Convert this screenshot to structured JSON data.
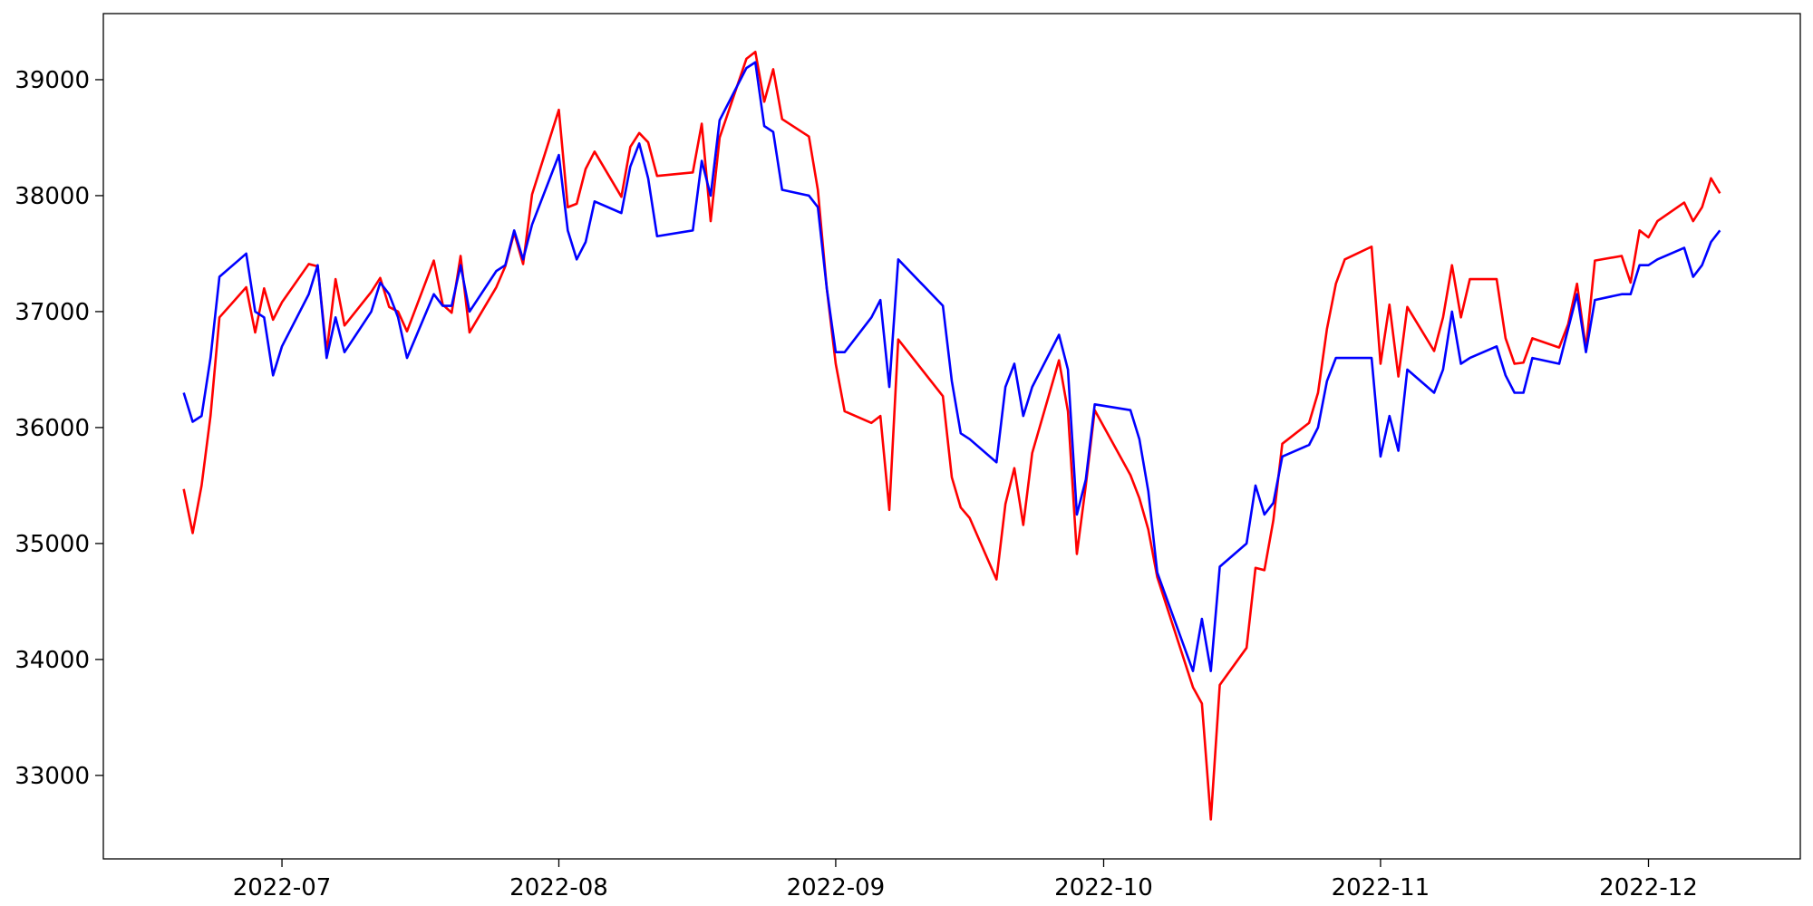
{
  "chart_data": {
    "type": "line",
    "x": [
      "2022-06-20",
      "2022-06-21",
      "2022-06-22",
      "2022-06-23",
      "2022-06-24",
      "2022-06-27",
      "2022-06-28",
      "2022-06-29",
      "2022-06-30",
      "2022-07-01",
      "2022-07-04",
      "2022-07-05",
      "2022-07-06",
      "2022-07-07",
      "2022-07-08",
      "2022-07-11",
      "2022-07-12",
      "2022-07-13",
      "2022-07-14",
      "2022-07-15",
      "2022-07-18",
      "2022-07-19",
      "2022-07-20",
      "2022-07-21",
      "2022-07-22",
      "2022-07-25",
      "2022-07-26",
      "2022-07-27",
      "2022-07-28",
      "2022-07-29",
      "2022-08-01",
      "2022-08-02",
      "2022-08-03",
      "2022-08-04",
      "2022-08-05",
      "2022-08-08",
      "2022-08-09",
      "2022-08-10",
      "2022-08-11",
      "2022-08-12",
      "2022-08-16",
      "2022-08-17",
      "2022-08-18",
      "2022-08-19",
      "2022-08-22",
      "2022-08-23",
      "2022-08-24",
      "2022-08-25",
      "2022-08-26",
      "2022-08-29",
      "2022-08-30",
      "2022-08-31",
      "2022-09-01",
      "2022-09-02",
      "2022-09-05",
      "2022-09-06",
      "2022-09-07",
      "2022-09-08",
      "2022-09-13",
      "2022-09-14",
      "2022-09-15",
      "2022-09-16",
      "2022-09-19",
      "2022-09-20",
      "2022-09-21",
      "2022-09-22",
      "2022-09-23",
      "2022-09-26",
      "2022-09-27",
      "2022-09-28",
      "2022-09-29",
      "2022-09-30",
      "2022-10-04",
      "2022-10-05",
      "2022-10-06",
      "2022-10-07",
      "2022-10-11",
      "2022-10-12",
      "2022-10-13",
      "2022-10-14",
      "2022-10-17",
      "2022-10-18",
      "2022-10-19",
      "2022-10-20",
      "2022-10-21",
      "2022-10-24",
      "2022-10-25",
      "2022-10-26",
      "2022-10-27",
      "2022-10-28",
      "2022-10-31",
      "2022-11-01",
      "2022-11-02",
      "2022-11-03",
      "2022-11-04",
      "2022-11-07",
      "2022-11-08",
      "2022-11-09",
      "2022-11-10",
      "2022-11-11",
      "2022-11-14",
      "2022-11-15",
      "2022-11-16",
      "2022-11-17",
      "2022-11-18",
      "2022-11-21",
      "2022-11-22",
      "2022-11-23",
      "2022-11-24",
      "2022-11-25",
      "2022-11-28",
      "2022-11-29",
      "2022-11-30",
      "2022-12-01",
      "2022-12-02",
      "2022-12-05",
      "2022-12-06",
      "2022-12-07",
      "2022-12-08",
      "2022-12-09"
    ],
    "series": [
      {
        "color": "#ff0000",
        "values": [
          35470,
          35090,
          35500,
          36100,
          36950,
          37210,
          36820,
          37200,
          36930,
          37080,
          37410,
          37390,
          36650,
          37280,
          36880,
          37170,
          37290,
          37040,
          37000,
          36830,
          37440,
          37060,
          36990,
          37480,
          36820,
          37210,
          37390,
          37680,
          37410,
          38010,
          38740,
          37900,
          37930,
          38230,
          38380,
          37990,
          38420,
          38540,
          38460,
          38170,
          38200,
          38620,
          37780,
          38500,
          39180,
          39240,
          38810,
          39090,
          38660,
          38510,
          38050,
          37200,
          36550,
          36140,
          36040,
          36100,
          35290,
          36760,
          36270,
          35570,
          35310,
          35220,
          34690,
          35340,
          35650,
          35160,
          35780,
          36580,
          36140,
          34910,
          35500,
          36150,
          35590,
          35390,
          35120,
          34710,
          33760,
          33620,
          32620,
          33780,
          34100,
          34790,
          34770,
          35200,
          35860,
          36040,
          36300,
          36850,
          37240,
          37450,
          37560,
          36550,
          37060,
          36440,
          37040,
          36660,
          36950,
          37400,
          36950,
          37280,
          37280,
          36770,
          36550,
          36560,
          36770,
          36690,
          36890,
          37240,
          36680,
          37440,
          37480,
          37250,
          37700,
          37640,
          37780,
          37940,
          37780,
          37900,
          38150,
          38020
        ]
      },
      {
        "color": "#0000ff",
        "values": [
          36300,
          36050,
          36100,
          36600,
          37300,
          37500,
          37000,
          36950,
          36450,
          36700,
          37150,
          37400,
          36600,
          36950,
          36650,
          37000,
          37250,
          37150,
          36950,
          36600,
          37150,
          37050,
          37050,
          37400,
          37000,
          37350,
          37400,
          37700,
          37450,
          37750,
          38350,
          37700,
          37450,
          37600,
          37950,
          37850,
          38250,
          38450,
          38150,
          37650,
          37700,
          38300,
          38000,
          38650,
          39100,
          39150,
          38600,
          38550,
          38050,
          38000,
          37900,
          37200,
          36650,
          36650,
          36950,
          37100,
          36350,
          37450,
          37050,
          36400,
          35950,
          35900,
          35700,
          36350,
          36550,
          36100,
          36350,
          36800,
          36500,
          35250,
          35550,
          36200,
          36150,
          35900,
          35450,
          34750,
          33900,
          34350,
          33900,
          34800,
          35000,
          35500,
          35250,
          35350,
          35750,
          35850,
          36000,
          36400,
          36600,
          36600,
          36600,
          35750,
          36100,
          35800,
          36500,
          36300,
          36500,
          37000,
          36550,
          36600,
          36700,
          36450,
          36300,
          36300,
          36600,
          36550,
          36850,
          37150,
          36650,
          37100,
          37150,
          37150,
          37400,
          37400,
          37450,
          37550,
          37300,
          37400,
          37600,
          37700
        ]
      }
    ],
    "xlim": [
      "2022-06-11",
      "2022-12-18"
    ],
    "xticks": [
      {
        "value": "2022-07-01",
        "label": "2022-07"
      },
      {
        "value": "2022-08-01",
        "label": "2022-08"
      },
      {
        "value": "2022-09-01",
        "label": "2022-09"
      },
      {
        "value": "2022-10-01",
        "label": "2022-10"
      },
      {
        "value": "2022-11-01",
        "label": "2022-11"
      },
      {
        "value": "2022-12-01",
        "label": "2022-12"
      }
    ],
    "ylim": [
      32280,
      39570
    ],
    "yticks": [
      33000,
      34000,
      35000,
      36000,
      37000,
      38000,
      39000
    ],
    "grid": false
  }
}
